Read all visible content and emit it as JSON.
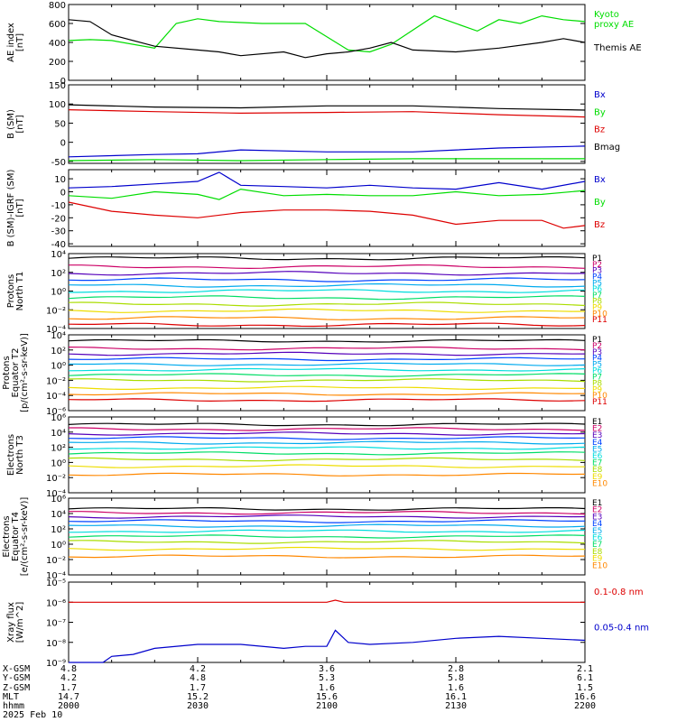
{
  "colors": {
    "black": "#000000",
    "blue": "#0000cc",
    "green": "#00dd00",
    "red": "#dd0000",
    "channels": [
      "#000000",
      "#cc0066",
      "#5500bb",
      "#0044ff",
      "#00aaee",
      "#00dddd",
      "#00dd66",
      "#aadd00",
      "#eedd00",
      "#ff8800",
      "#dd0000",
      "#aa0000"
    ]
  },
  "chart_data": [
    {
      "type": "line",
      "ylabel": "AE index\n[nT]",
      "ylim": [
        0,
        800
      ],
      "yscale": "linear",
      "yticks": [
        0,
        200,
        400,
        600,
        800
      ],
      "ytick_labels": [
        "0",
        "200",
        "400",
        "600",
        "800"
      ],
      "series": [
        {
          "name": "Kyoto\nproxy AE",
          "color": "green",
          "x": [
            0,
            5,
            10,
            15,
            20,
            25,
            30,
            35,
            45,
            55,
            65,
            70,
            75,
            85,
            95,
            100,
            105,
            110,
            115,
            120
          ],
          "y": [
            420,
            430,
            420,
            380,
            340,
            600,
            650,
            620,
            600,
            600,
            320,
            300,
            380,
            680,
            520,
            640,
            600,
            680,
            640,
            620
          ]
        },
        {
          "name": "Themis AE",
          "color": "black",
          "x": [
            0,
            5,
            10,
            20,
            30,
            35,
            40,
            50,
            55,
            60,
            65,
            70,
            75,
            80,
            90,
            100,
            110,
            115,
            120
          ],
          "y": [
            640,
            620,
            480,
            360,
            320,
            300,
            260,
            300,
            240,
            280,
            300,
            340,
            400,
            320,
            300,
            340,
            400,
            440,
            400
          ]
        }
      ]
    },
    {
      "type": "line",
      "ylabel": "B (SM)\n[nT]",
      "ylim": [
        -55,
        150
      ],
      "yscale": "linear",
      "yticks": [
        -50,
        0,
        50,
        100,
        150
      ],
      "ytick_labels": [
        "-50",
        "0",
        "50",
        "100",
        "150"
      ],
      "series": [
        {
          "name": "Bx",
          "color": "blue",
          "x": [
            0,
            20,
            30,
            40,
            60,
            80,
            100,
            120
          ],
          "y": [
            -38,
            -32,
            -30,
            -20,
            -25,
            -25,
            -15,
            -10
          ]
        },
        {
          "name": "By",
          "color": "green",
          "x": [
            0,
            20,
            40,
            60,
            80,
            100,
            120
          ],
          "y": [
            -48,
            -45,
            -48,
            -45,
            -43,
            -43,
            -43
          ]
        },
        {
          "name": "Bz",
          "color": "red",
          "x": [
            0,
            20,
            40,
            60,
            80,
            100,
            120
          ],
          "y": [
            85,
            80,
            76,
            78,
            80,
            72,
            66
          ]
        },
        {
          "name": "Bmag",
          "color": "black",
          "x": [
            0,
            20,
            40,
            60,
            80,
            100,
            120
          ],
          "y": [
            98,
            92,
            90,
            95,
            95,
            88,
            84
          ]
        }
      ]
    },
    {
      "type": "line",
      "ylabel": "B (SM)-IGRF (SM)\n[nT]",
      "ylim": [
        -42,
        17
      ],
      "yscale": "linear",
      "yticks": [
        -40,
        -30,
        -20,
        -10,
        0,
        10
      ],
      "ytick_labels": [
        "-40",
        "-30",
        "-20",
        "-10",
        "0",
        "10"
      ],
      "series": [
        {
          "name": "Bx",
          "color": "blue",
          "x": [
            0,
            10,
            20,
            30,
            35,
            40,
            50,
            60,
            70,
            80,
            90,
            100,
            110,
            120
          ],
          "y": [
            3,
            4,
            6,
            8,
            15,
            5,
            4,
            3,
            5,
            3,
            2,
            7,
            2,
            8
          ]
        },
        {
          "name": "By",
          "color": "green",
          "x": [
            0,
            10,
            20,
            30,
            35,
            40,
            50,
            60,
            70,
            80,
            90,
            100,
            110,
            120
          ],
          "y": [
            -3,
            -5,
            0,
            -2,
            -6,
            2,
            -3,
            -2,
            -3,
            -3,
            0,
            -3,
            -2,
            1
          ]
        },
        {
          "name": "Bz",
          "color": "red",
          "x": [
            0,
            10,
            20,
            30,
            40,
            50,
            60,
            70,
            80,
            90,
            100,
            110,
            115,
            120
          ],
          "y": [
            -8,
            -15,
            -18,
            -20,
            -16,
            -14,
            -14,
            -15,
            -18,
            -25,
            -22,
            -22,
            -28,
            -26
          ]
        }
      ]
    },
    {
      "type": "line",
      "ylabel": "Protons\nNorth T1",
      "ylim": [
        -4,
        4
      ],
      "yscale": "log",
      "yticks": [
        -4,
        -2,
        0,
        2,
        4
      ],
      "ytick_labels": [
        "10⁻⁴",
        "10⁻²",
        "10⁰",
        "10²",
        "10⁴"
      ],
      "series": [
        {
          "name": "P1",
          "level": 3.5
        },
        {
          "name": "P2",
          "level": 2.6
        },
        {
          "name": "P3",
          "level": 1.9
        },
        {
          "name": "P4",
          "level": 1.2
        },
        {
          "name": "P5",
          "level": 0.6
        },
        {
          "name": "P6",
          "level": 0.0
        },
        {
          "name": "P7",
          "level": -0.7
        },
        {
          "name": "P8",
          "level": -1.4
        },
        {
          "name": "P9",
          "level": -2.1
        },
        {
          "name": "P10",
          "level": -2.9
        },
        {
          "name": "P11",
          "level": -3.6
        }
      ]
    },
    {
      "type": "line",
      "ylabel": "Protons\nEquator T2\n[p/(cm²-s-sr-keV)]",
      "ylim": [
        -6,
        4
      ],
      "yscale": "log",
      "yticks": [
        -6,
        -4,
        -2,
        0,
        2,
        4
      ],
      "ytick_labels": [
        "10⁻⁶",
        "10⁻⁴",
        "10⁻²",
        "10⁰",
        "10²",
        "10⁴"
      ],
      "series": [
        {
          "name": "P1",
          "level": 3.2
        },
        {
          "name": "P2",
          "level": 2.2
        },
        {
          "name": "P3",
          "level": 1.5
        },
        {
          "name": "P4",
          "level": 0.8
        },
        {
          "name": "P5",
          "level": 0.1
        },
        {
          "name": "P6",
          "level": -0.6
        },
        {
          "name": "P7",
          "level": -1.3
        },
        {
          "name": "P8",
          "level": -2.0
        },
        {
          "name": "P9",
          "level": -3.0
        },
        {
          "name": "P10",
          "level": -3.8
        },
        {
          "name": "P11",
          "level": -4.6
        }
      ]
    },
    {
      "type": "line",
      "ylabel": "Electrons\nNorth T3",
      "ylim": [
        -4,
        6
      ],
      "yscale": "log",
      "yticks": [
        -4,
        -2,
        0,
        2,
        4,
        6
      ],
      "ytick_labels": [
        "10⁻⁴",
        "10⁻²",
        "10⁰",
        "10²",
        "10⁴",
        "10⁶"
      ],
      "series": [
        {
          "name": "E1",
          "level": 5.0
        },
        {
          "name": "E2",
          "level": 4.4
        },
        {
          "name": "E3",
          "level": 3.8
        },
        {
          "name": "E4",
          "level": 3.2
        },
        {
          "name": "E5",
          "level": 2.6
        },
        {
          "name": "E6",
          "level": 1.9
        },
        {
          "name": "E7",
          "level": 1.2
        },
        {
          "name": "E8",
          "level": 0.4
        },
        {
          "name": "E9",
          "level": -0.5
        },
        {
          "name": "E10",
          "level": -1.6
        }
      ]
    },
    {
      "type": "line",
      "ylabel": "Electrons\nEquator T4\n[e/(cm²-s-sr-keV)]",
      "ylim": [
        -4,
        6
      ],
      "yscale": "log",
      "yticks": [
        -4,
        -2,
        0,
        2,
        4,
        6
      ],
      "ytick_labels": [
        "10⁻⁴",
        "10⁻²",
        "10⁰",
        "10²",
        "10⁴",
        "10⁶"
      ],
      "series": [
        {
          "name": "E1",
          "level": 4.6
        },
        {
          "name": "E2",
          "level": 4.1
        },
        {
          "name": "E3",
          "level": 3.6
        },
        {
          "name": "E4",
          "level": 3.0
        },
        {
          "name": "E5",
          "level": 2.4
        },
        {
          "name": "E6",
          "level": 1.7
        },
        {
          "name": "E7",
          "level": 1.0
        },
        {
          "name": "E8",
          "level": 0.3
        },
        {
          "name": "E9",
          "level": -0.6
        },
        {
          "name": "E10",
          "level": -1.6
        }
      ]
    },
    {
      "type": "line",
      "ylabel": "Xray flux\n[W/m^2]",
      "ylim": [
        -9,
        -5
      ],
      "yscale": "log",
      "yticks": [
        -9,
        -8,
        -7,
        -6,
        -5
      ],
      "ytick_labels": [
        "10⁻⁹",
        "10⁻⁸",
        "10⁻⁷",
        "10⁻⁶",
        "10⁻⁵"
      ],
      "series": [
        {
          "name": "0.1-0.8 nm",
          "color": "red",
          "x": [
            0,
            40,
            60,
            62,
            64,
            70,
            120
          ],
          "y": [
            -6.0,
            -6.0,
            -6.0,
            -5.9,
            -6.0,
            -6.0,
            -6.0
          ]
        },
        {
          "name": "0.05-0.4 nm",
          "color": "blue",
          "x": [
            0,
            8,
            10,
            15,
            20,
            30,
            40,
            50,
            55,
            60,
            62,
            65,
            70,
            80,
            90,
            100,
            110,
            120
          ],
          "y": [
            -9.0,
            -9.0,
            -8.7,
            -8.6,
            -8.3,
            -8.1,
            -8.1,
            -8.3,
            -8.2,
            -8.2,
            -7.4,
            -8.0,
            -8.1,
            -8.0,
            -7.8,
            -7.7,
            -7.8,
            -7.9
          ]
        }
      ]
    }
  ],
  "ephemeris": {
    "labels": [
      "X-GSM",
      "Y-GSM",
      "Z-GSM",
      "MLT",
      "hhmm",
      "2025 Feb 10"
    ],
    "columns": [
      [
        "4.8",
        "4.2",
        "1.7",
        "14.7",
        "2000"
      ],
      [
        "4.2",
        "4.8",
        "1.7",
        "15.2",
        "2030"
      ],
      [
        "3.6",
        "5.3",
        "1.6",
        "15.6",
        "2100"
      ],
      [
        "2.8",
        "5.8",
        "1.6",
        "16.1",
        "2130"
      ],
      [
        "2.1",
        "6.1",
        "1.5",
        "16.6",
        "2200"
      ]
    ]
  }
}
